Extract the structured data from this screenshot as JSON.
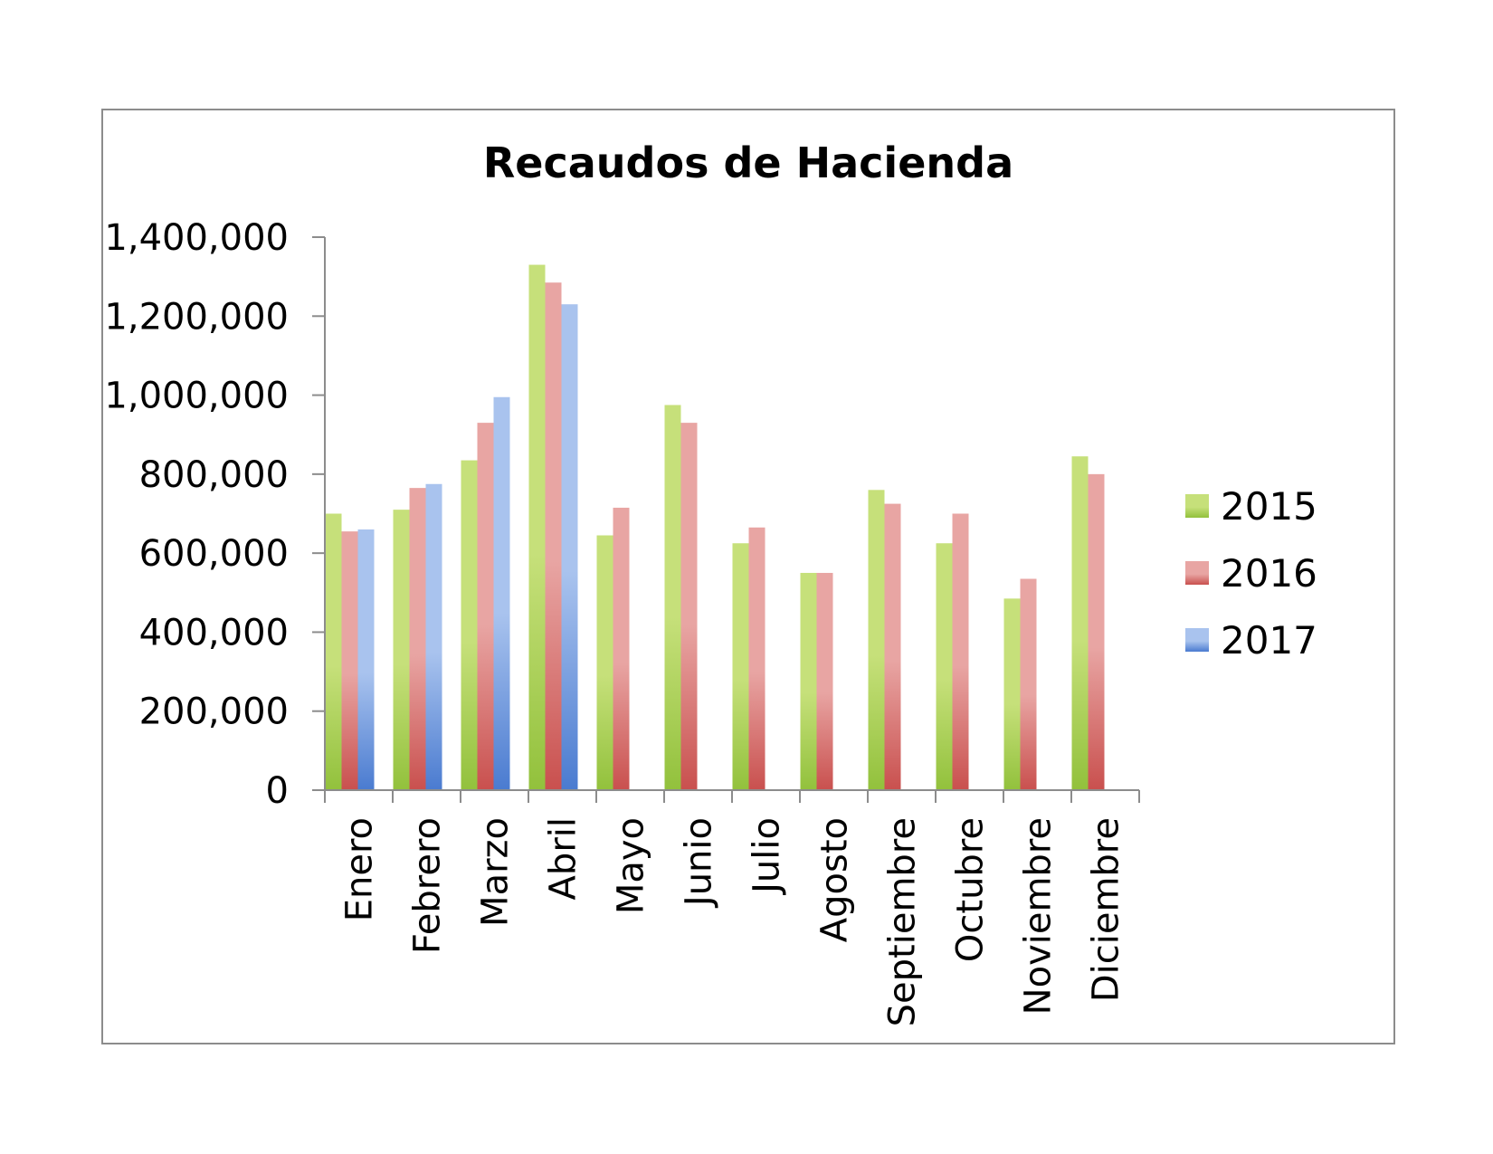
{
  "chart_data": {
    "type": "bar",
    "title": "Recaudos de Hacienda",
    "xlabel": "",
    "ylabel": "",
    "ylim": [
      0,
      1400000
    ],
    "yticks": [
      0,
      200000,
      400000,
      600000,
      800000,
      1000000,
      1200000,
      1400000
    ],
    "ytick_labels": [
      "0",
      "200,000",
      "400,000",
      "600,000",
      "800,000",
      "1,000,000",
      "1,200,000",
      "1,400,000"
    ],
    "categories": [
      "Enero",
      "Febrero",
      "Marzo",
      "Abril",
      "Mayo",
      "Junio",
      "Julio",
      "Agosto",
      "Septiembre",
      "Octubre",
      "Noviembre",
      "Diciembre"
    ],
    "grid": false,
    "legend_position": "right",
    "series": [
      {
        "name": "2015",
        "color": "#c6e07a",
        "colorDark": "#92c13c",
        "values": [
          700000,
          710000,
          835000,
          1330000,
          645000,
          975000,
          625000,
          550000,
          760000,
          625000,
          485000,
          845000
        ]
      },
      {
        "name": "2016",
        "color": "#e8a5a3",
        "colorDark": "#c9504e",
        "values": [
          655000,
          765000,
          930000,
          1285000,
          715000,
          930000,
          665000,
          550000,
          725000,
          700000,
          535000,
          800000
        ]
      },
      {
        "name": "2017",
        "color": "#a9c3ee",
        "colorDark": "#4a7bd0",
        "values": [
          660000,
          775000,
          995000,
          1230000,
          null,
          null,
          null,
          null,
          null,
          null,
          null,
          null
        ]
      }
    ]
  }
}
